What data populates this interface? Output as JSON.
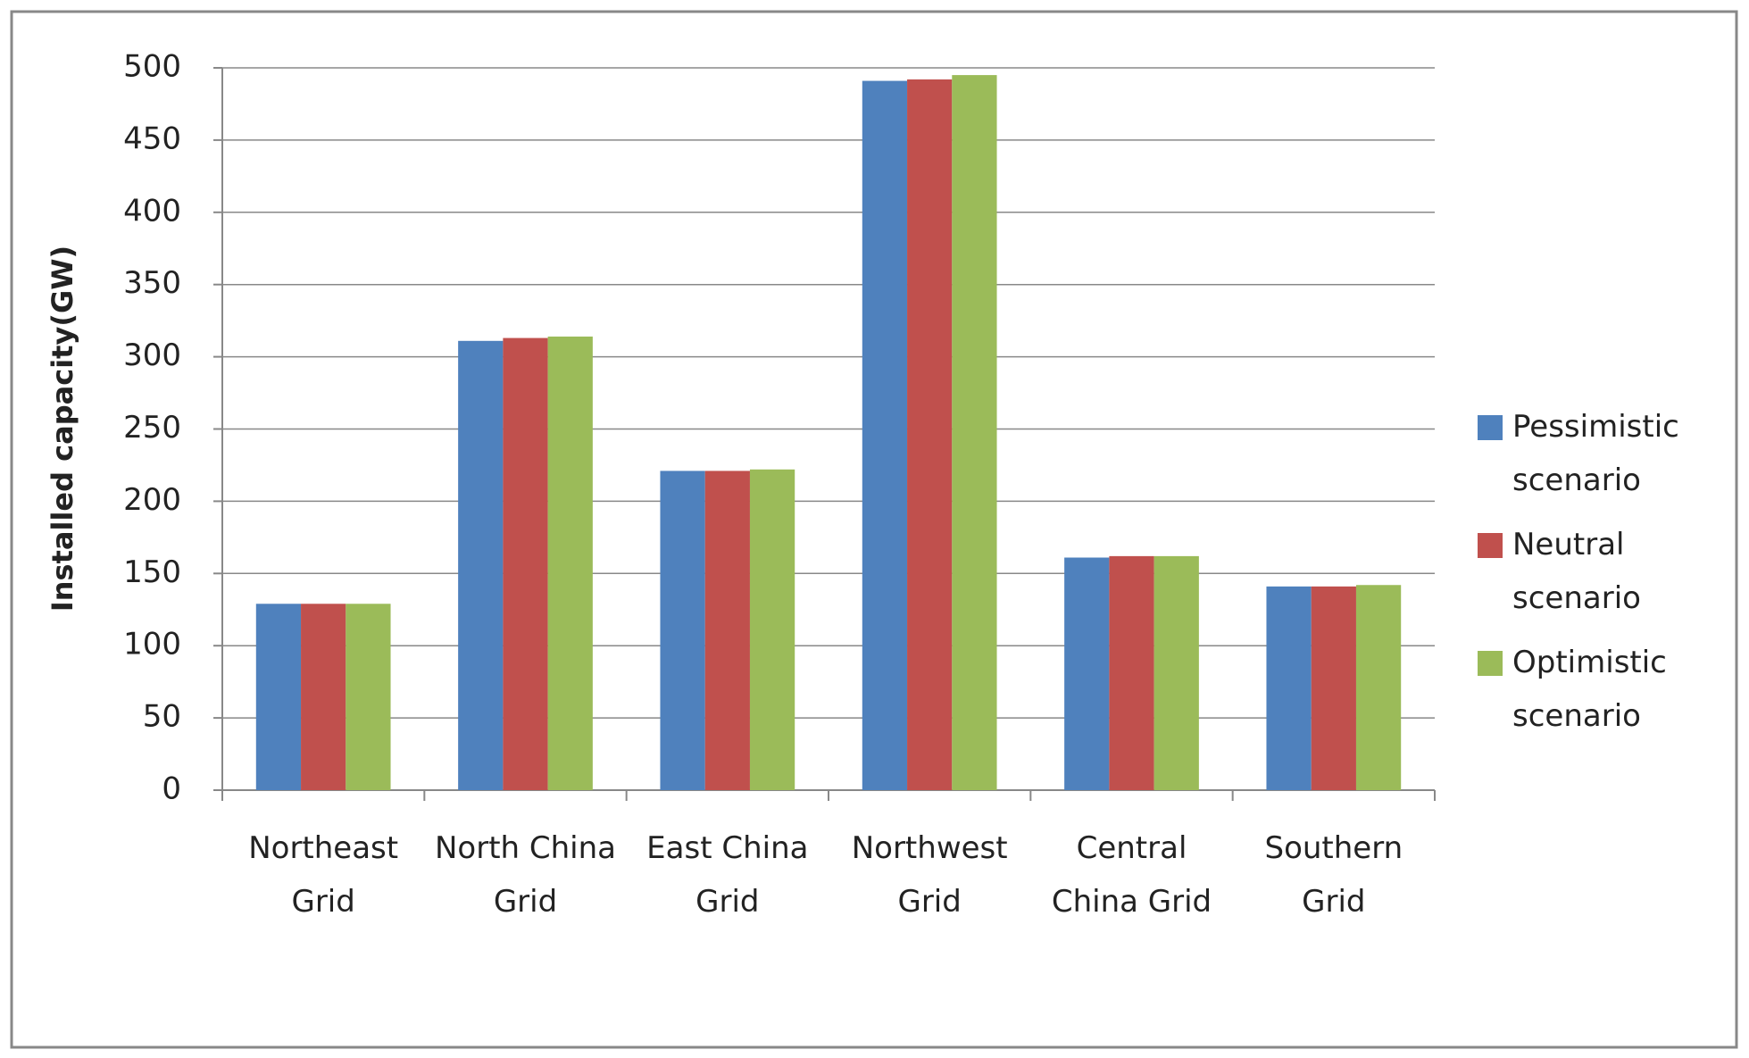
{
  "chart_data": {
    "type": "bar",
    "y_label": "Installed capacity(GW)",
    "categories": [
      "Northeast Grid",
      "North China Grid",
      "East China Grid",
      "Northwest Grid",
      "Central China Grid",
      "Southern Grid"
    ],
    "series": [
      {
        "name": "Pessimistic scenario",
        "color": "#4f81bd",
        "values": [
          129,
          311,
          221,
          491,
          161,
          141
        ]
      },
      {
        "name": "Neutral scenario",
        "color": "#c0504d",
        "values": [
          129,
          313,
          221,
          492,
          162,
          141
        ]
      },
      {
        "name": "Optimistic scenario",
        "color": "#9bbb59",
        "values": [
          129,
          314,
          222,
          495,
          162,
          142
        ]
      }
    ],
    "ylim": [
      0,
      500
    ],
    "yticks": [
      0,
      50,
      100,
      150,
      200,
      250,
      300,
      350,
      400,
      450,
      500
    ],
    "grid": true,
    "legend": "right"
  }
}
